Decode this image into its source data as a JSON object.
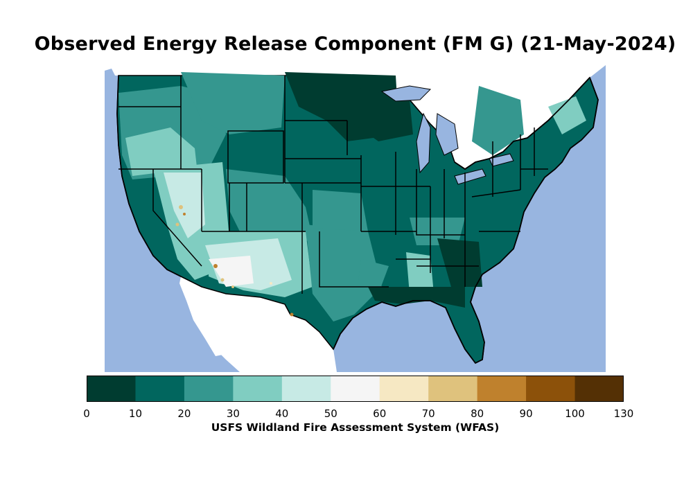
{
  "map": {
    "title": "Observed Energy Release Component (FM G) (21-May-2024)",
    "colorbar_label": "USFS Wildland Fire Assessment System (WFAS)",
    "colorbar_ticks": [
      "0",
      "10",
      "20",
      "30",
      "40",
      "50",
      "60",
      "70",
      "80",
      "90",
      "100",
      "130"
    ],
    "colorbar_bins": [
      {
        "range": [
          0,
          10
        ],
        "color": "#003c30"
      },
      {
        "range": [
          10,
          20
        ],
        "color": "#01665e"
      },
      {
        "range": [
          20,
          30
        ],
        "color": "#35978f"
      },
      {
        "range": [
          30,
          40
        ],
        "color": "#80cdc1"
      },
      {
        "range": [
          40,
          50
        ],
        "color": "#c7eae5"
      },
      {
        "range": [
          50,
          60
        ],
        "color": "#f5f5f5"
      },
      {
        "range": [
          60,
          70
        ],
        "color": "#f6e8c3"
      },
      {
        "range": [
          70,
          80
        ],
        "color": "#dfc27d"
      },
      {
        "range": [
          80,
          90
        ],
        "color": "#bf812d"
      },
      {
        "range": [
          90,
          100
        ],
        "color": "#8c510a"
      },
      {
        "range": [
          100,
          130
        ],
        "color": "#543005"
      }
    ],
    "water_color": "#98b5e0",
    "border_color": "#000000"
  }
}
